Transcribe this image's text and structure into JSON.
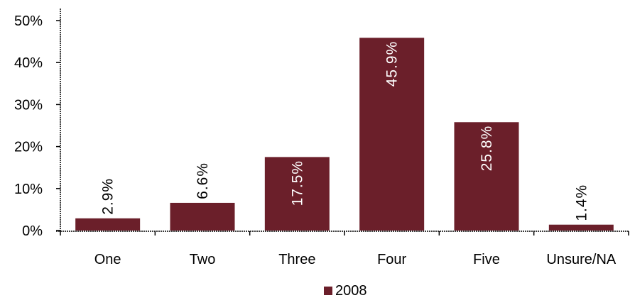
{
  "chart_data": {
    "type": "bar",
    "categories": [
      "One",
      "Two",
      "Three",
      "Four",
      "Five",
      "Unsure/NA"
    ],
    "series": [
      {
        "name": "2008",
        "values": [
          2.9,
          6.6,
          17.5,
          45.9,
          25.8,
          1.4
        ],
        "data_labels": [
          "2.9%",
          "6.6%",
          "17.5%",
          "45.9%",
          "25.8%",
          "1.4%"
        ],
        "color": "#6b1f2a"
      }
    ],
    "y_ticks": [
      0,
      10,
      20,
      30,
      40,
      50
    ],
    "y_tick_labels": [
      "0%",
      "10%",
      "20%",
      "30%",
      "40%",
      "50%"
    ],
    "ylim": [
      0,
      50
    ],
    "grid": false,
    "legend_position": "bottom-center",
    "label_color_inside": "#ffffff",
    "label_color_outside": "#000000",
    "axis_color": "#000000"
  }
}
